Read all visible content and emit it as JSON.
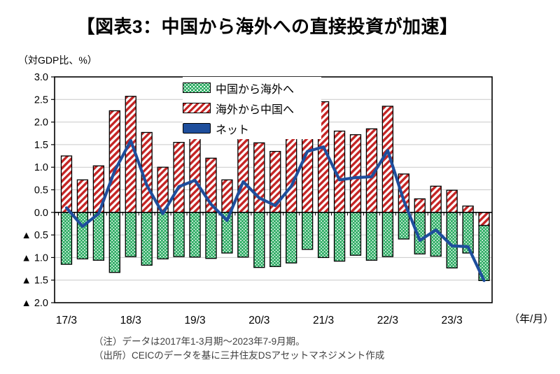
{
  "title": "【図表3：中国から海外への直接投資が加速】",
  "unit_label": "（対GDP比、%）",
  "axis_unit_label": "（年/月）",
  "legend": [
    {
      "label": "中国から海外へ",
      "swatch": "green-dotted-pattern"
    },
    {
      "label": "海外から中国へ",
      "swatch": "red-striped-pattern"
    },
    {
      "label": "ネット",
      "swatch": "blue-line"
    }
  ],
  "notes": [
    "（注）データは2017年1-3月期～2023年7-9月期。",
    "（出所）CEICのデータを基に三井住友DSアセットマネジメント作成"
  ],
  "colors": {
    "outbound_green": "#2BAC62",
    "inbound_red": "#C42525",
    "net_blue": "#1E4E9C",
    "gridline": "#C9C9C9",
    "axis": "#000000",
    "notes_text": "#3f3f3f"
  },
  "chart_data": {
    "type": "bar",
    "subtype": "stacked bars with line overlay (combo)",
    "title": "図表3：中国から海外への直接投資が加速",
    "ylabel": "対GDP比、%",
    "xlabel": "年/月",
    "ylim": [
      -2.0,
      3.0
    ],
    "grid": true,
    "legend_position": "inside top-center",
    "negative_notation": "▲ prefix (Japanese negative triangle)",
    "y_tick_labels": [
      "3.0",
      "2.5",
      "2.0",
      "1.5",
      "1.0",
      "0.5",
      "0.0",
      "▲ 0.5",
      "▲ 1.0",
      "▲ 1.5",
      "▲ 2.0"
    ],
    "y_tick_values": [
      3.0,
      2.5,
      2.0,
      1.5,
      1.0,
      0.5,
      0.0,
      -0.5,
      -1.0,
      -1.5,
      -2.0
    ],
    "x_tick_labels": [
      "17/3",
      "18/3",
      "19/3",
      "20/3",
      "21/3",
      "22/3",
      "23/3"
    ],
    "categories": [
      "17/3",
      "17/6",
      "17/9",
      "17/12",
      "18/3",
      "18/6",
      "18/9",
      "18/12",
      "19/3",
      "19/6",
      "19/9",
      "19/12",
      "20/3",
      "20/6",
      "20/9",
      "20/12",
      "21/3",
      "21/6",
      "21/9",
      "21/12",
      "22/3",
      "22/6",
      "22/9",
      "22/12",
      "23/3",
      "23/6",
      "23/9"
    ],
    "series": [
      {
        "name": "中国から海外へ",
        "type": "bar",
        "pattern": "green-dotted",
        "values": [
          -1.15,
          -1.03,
          -1.06,
          -1.33,
          -0.98,
          -1.17,
          -1.03,
          -0.98,
          -0.99,
          -1.02,
          -0.9,
          -0.99,
          -1.22,
          -1.2,
          -1.12,
          -0.82,
          -1.0,
          -1.08,
          -0.95,
          -1.06,
          -0.98,
          -0.59,
          -0.92,
          -0.97,
          -1.23,
          -0.9,
          -1.22
        ]
      },
      {
        "name": "海外から中国へ",
        "type": "bar",
        "pattern": "red-striped",
        "values": [
          1.25,
          0.72,
          1.03,
          2.25,
          2.57,
          1.77,
          1.0,
          1.55,
          1.7,
          1.2,
          0.72,
          1.67,
          1.54,
          1.35,
          1.7,
          2.17,
          2.45,
          1.8,
          1.72,
          1.85,
          2.35,
          0.85,
          0.3,
          0.58,
          0.49,
          0.14,
          -0.29
        ]
      },
      {
        "name": "ネット",
        "type": "line",
        "color": "#1E4E9C",
        "values": [
          0.1,
          -0.31,
          -0.03,
          0.92,
          1.59,
          0.6,
          -0.03,
          0.57,
          0.71,
          0.18,
          -0.18,
          0.68,
          0.32,
          0.15,
          0.58,
          1.35,
          1.45,
          0.72,
          0.77,
          0.79,
          1.37,
          0.26,
          -0.62,
          -0.39,
          -0.74,
          -0.76,
          -1.51
        ]
      }
    ]
  }
}
